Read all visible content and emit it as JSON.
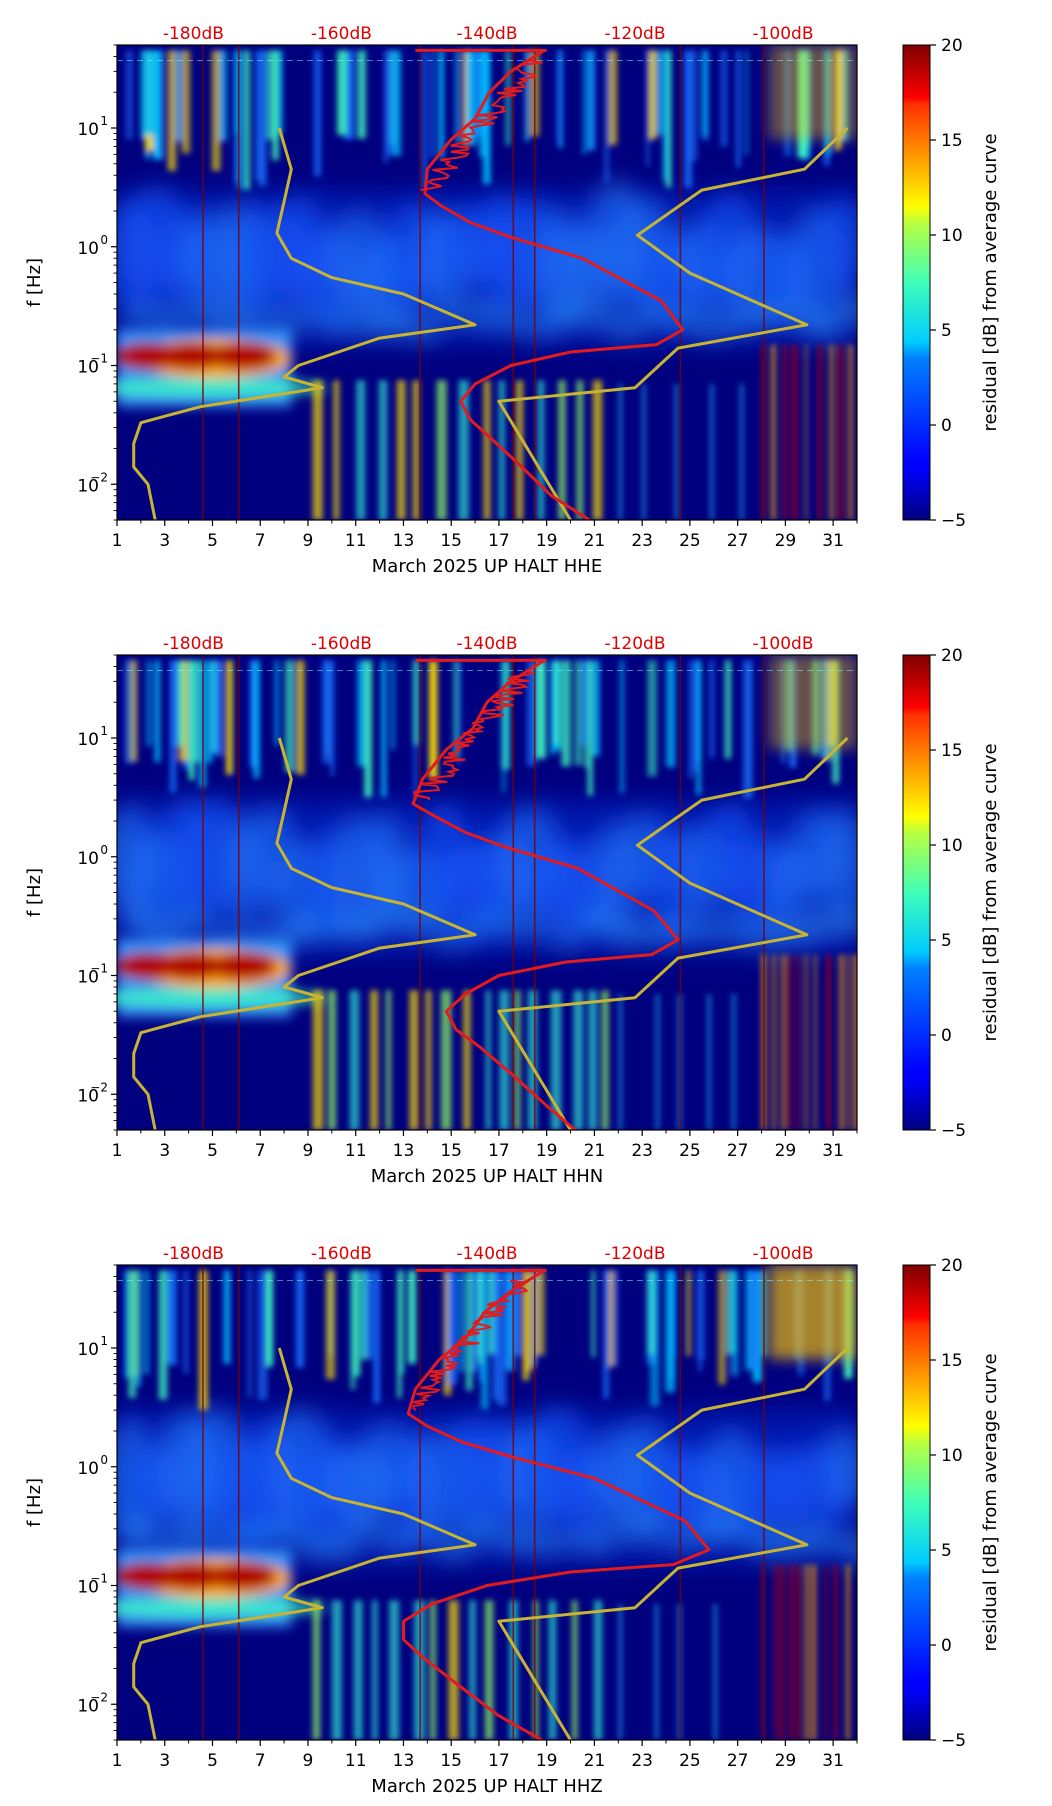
{
  "chart_data": [
    {
      "type": "heatmap",
      "component": "HHE",
      "xlabel": "March 2025 UP HALT  HHE",
      "ylabel": "f [Hz]",
      "colorbar_label": "residual [dB] from average curve",
      "colorbar_range": [
        -5,
        20
      ],
      "colorbar_ticks": [
        "20",
        "15",
        "10",
        "5",
        "0",
        "−5"
      ],
      "x_ticks": [
        "1",
        "3",
        "5",
        "7",
        "9",
        "11",
        "13",
        "15",
        "17",
        "19",
        "21",
        "23",
        "25",
        "27",
        "29",
        "31"
      ],
      "xlim": [
        1,
        32
      ],
      "ylim": [
        0.005,
        50
      ],
      "y_ticks": [
        {
          "value": 10,
          "mant": "10",
          "exp": "1"
        },
        {
          "value": 1,
          "mant": "10",
          "exp": "0"
        },
        {
          "value": 0.1,
          "mant": "10",
          "exp": "−1"
        },
        {
          "value": 0.01,
          "mant": "10",
          "exp": "−2"
        }
      ],
      "db_scale_labels": [
        {
          "label": "-180dB",
          "x": 4.2
        },
        {
          "label": "-160dB",
          "x": 10.4
        },
        {
          "label": "-140dB",
          "x": 16.5
        },
        {
          "label": "-120dB",
          "x": 22.7
        },
        {
          "label": "-100dB",
          "x": 28.9
        }
      ],
      "average_curve": {
        "x": [
          18.9,
          17.5,
          16.6,
          16.0,
          15.0,
          14.0,
          13.9,
          14.6,
          15.8,
          17.5,
          20.5,
          23.8,
          24.7,
          23.6,
          20.0,
          17.5,
          16.0,
          15.4,
          15.8,
          16.6,
          17.8,
          19.2,
          20.8
        ],
        "y": [
          45,
          30,
          20,
          12,
          8,
          4.5,
          2.8,
          2.2,
          1.6,
          1.2,
          0.8,
          0.35,
          0.2,
          0.15,
          0.13,
          0.1,
          0.07,
          0.05,
          0.035,
          0.025,
          0.015,
          0.008,
          0.005
        ]
      },
      "noise_model_low": {
        "x": [
          7.8,
          8.3,
          8.0,
          7.7,
          8.3,
          10.0,
          13.0,
          16.0,
          12.0,
          8.6,
          8.0,
          9.6,
          4.5,
          2.0,
          1.7,
          1.7,
          2.3,
          2.6
        ],
        "y": [
          10,
          4.5,
          2.4,
          1.3,
          0.8,
          0.55,
          0.4,
          0.22,
          0.17,
          0.1,
          0.08,
          0.065,
          0.045,
          0.033,
          0.022,
          0.014,
          0.01,
          0.005
        ]
      },
      "noise_model_high": {
        "x": [
          31.6,
          29.8,
          25.5,
          22.8,
          25.0,
          29.9,
          24.5,
          22.7,
          17.0,
          20.0
        ],
        "y": [
          10,
          4.5,
          3.0,
          1.25,
          0.6,
          0.22,
          0.14,
          0.065,
          0.05,
          0.005
        ]
      }
    },
    {
      "type": "heatmap",
      "component": "HHN",
      "xlabel": "March 2025 UP HALT  HHN",
      "ylabel": "f [Hz]",
      "colorbar_label": "residual [dB] from average curve",
      "colorbar_range": [
        -5,
        20
      ],
      "colorbar_ticks": [
        "20",
        "15",
        "10",
        "5",
        "0",
        "−5"
      ],
      "x_ticks": [
        "1",
        "3",
        "5",
        "7",
        "9",
        "11",
        "13",
        "15",
        "17",
        "19",
        "21",
        "23",
        "25",
        "27",
        "29",
        "31"
      ],
      "xlim": [
        1,
        32
      ],
      "ylim": [
        0.005,
        50
      ],
      "y_ticks": [
        {
          "value": 10,
          "mant": "10",
          "exp": "1"
        },
        {
          "value": 1,
          "mant": "10",
          "exp": "0"
        },
        {
          "value": 0.1,
          "mant": "10",
          "exp": "−1"
        },
        {
          "value": 0.01,
          "mant": "10",
          "exp": "−2"
        }
      ],
      "db_scale_labels": [
        {
          "label": "-180dB",
          "x": 4.2
        },
        {
          "label": "-160dB",
          "x": 10.4
        },
        {
          "label": "-140dB",
          "x": 16.5
        },
        {
          "label": "-120dB",
          "x": 22.7
        },
        {
          "label": "-100dB",
          "x": 28.9
        }
      ],
      "average_curve": {
        "x": [
          18.9,
          17.5,
          16.5,
          15.9,
          14.8,
          13.8,
          13.4,
          14.3,
          15.6,
          17.3,
          20.3,
          23.5,
          24.5,
          23.4,
          19.8,
          17.0,
          15.6,
          14.8,
          15.2,
          16.2,
          17.5,
          19.0,
          20.2
        ],
        "y": [
          45,
          30,
          20,
          12,
          8,
          4.5,
          2.8,
          2.2,
          1.6,
          1.2,
          0.8,
          0.35,
          0.2,
          0.15,
          0.13,
          0.1,
          0.07,
          0.05,
          0.035,
          0.025,
          0.015,
          0.008,
          0.005
        ]
      },
      "noise_model_low": {
        "x": [
          7.8,
          8.3,
          8.0,
          7.7,
          8.3,
          10.0,
          13.0,
          16.0,
          12.0,
          8.6,
          8.0,
          9.6,
          4.5,
          2.0,
          1.7,
          1.7,
          2.3,
          2.6
        ],
        "y": [
          10,
          4.5,
          2.4,
          1.3,
          0.8,
          0.55,
          0.4,
          0.22,
          0.17,
          0.1,
          0.08,
          0.065,
          0.045,
          0.033,
          0.022,
          0.014,
          0.01,
          0.005
        ]
      },
      "noise_model_high": {
        "x": [
          31.6,
          29.8,
          25.5,
          22.8,
          25.0,
          29.9,
          24.5,
          22.7,
          17.0,
          20.0
        ],
        "y": [
          10,
          4.5,
          3.0,
          1.25,
          0.6,
          0.22,
          0.14,
          0.065,
          0.05,
          0.005
        ]
      }
    },
    {
      "type": "heatmap",
      "component": "HHZ",
      "xlabel": "March 2025 UP HALT  HHZ",
      "ylabel": "f [Hz]",
      "colorbar_label": "residual [dB] from average curve",
      "colorbar_range": [
        -5,
        20
      ],
      "colorbar_ticks": [
        "20",
        "15",
        "10",
        "5",
        "0",
        "−5"
      ],
      "x_ticks": [
        "1",
        "3",
        "5",
        "7",
        "9",
        "11",
        "13",
        "15",
        "17",
        "19",
        "21",
        "23",
        "25",
        "27",
        "29",
        "31"
      ],
      "xlim": [
        1,
        32
      ],
      "ylim": [
        0.005,
        50
      ],
      "y_ticks": [
        {
          "value": 10,
          "mant": "10",
          "exp": "1"
        },
        {
          "value": 1,
          "mant": "10",
          "exp": "0"
        },
        {
          "value": 0.1,
          "mant": "10",
          "exp": "−1"
        },
        {
          "value": 0.01,
          "mant": "10",
          "exp": "−2"
        }
      ],
      "db_scale_labels": [
        {
          "label": "-180dB",
          "x": 4.2
        },
        {
          "label": "-160dB",
          "x": 10.4
        },
        {
          "label": "-140dB",
          "x": 16.5
        },
        {
          "label": "-120dB",
          "x": 22.7
        },
        {
          "label": "-100dB",
          "x": 28.9
        }
      ],
      "average_curve": {
        "x": [
          18.9,
          17.5,
          16.4,
          15.6,
          14.5,
          13.5,
          13.2,
          14.0,
          15.5,
          17.6,
          21.0,
          24.8,
          25.8,
          24.3,
          20.0,
          16.5,
          14.2,
          13.0,
          13.0,
          13.8,
          15.2,
          17.0,
          18.8
        ],
        "y": [
          45,
          30,
          20,
          12,
          8,
          4.5,
          2.8,
          2.2,
          1.6,
          1.2,
          0.8,
          0.35,
          0.2,
          0.15,
          0.13,
          0.1,
          0.07,
          0.05,
          0.035,
          0.025,
          0.015,
          0.008,
          0.005
        ]
      },
      "noise_model_low": {
        "x": [
          7.8,
          8.3,
          8.0,
          7.7,
          8.3,
          10.0,
          13.0,
          16.0,
          12.0,
          8.6,
          8.0,
          9.6,
          4.5,
          2.0,
          1.7,
          1.7,
          2.3,
          2.6
        ],
        "y": [
          10,
          4.5,
          2.4,
          1.3,
          0.8,
          0.55,
          0.4,
          0.22,
          0.17,
          0.1,
          0.08,
          0.065,
          0.045,
          0.033,
          0.022,
          0.014,
          0.01,
          0.005
        ]
      },
      "noise_model_high": {
        "x": [
          31.6,
          29.8,
          25.5,
          22.8,
          25.0,
          29.9,
          24.5,
          22.7,
          17.0,
          20.0
        ],
        "y": [
          10,
          4.5,
          3.0,
          1.25,
          0.6,
          0.22,
          0.14,
          0.065,
          0.05,
          0.005
        ]
      }
    }
  ],
  "colors": {
    "average_curve": "#e41a1c",
    "noise_model": "#c8b432",
    "db_labels": "#e00000",
    "background": "#00007f"
  }
}
